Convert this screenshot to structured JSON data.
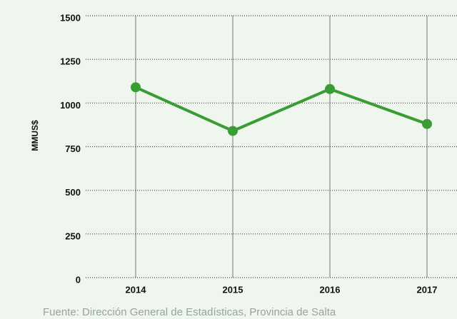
{
  "chart_data": {
    "type": "line",
    "y_label": "MMUS$",
    "categories": [
      "2014",
      "2015",
      "2016",
      "2017"
    ],
    "series": [
      {
        "name": null,
        "color": "#3a9c35",
        "values": [
          1090,
          840,
          1080,
          880
        ]
      }
    ],
    "ylim": [
      0,
      1500
    ],
    "yticks": [
      0,
      250,
      500,
      750,
      1000,
      1250,
      1500
    ],
    "grid": true,
    "source": "Fuente: Dirección General de Estadísticas, Provincia de Salta"
  }
}
